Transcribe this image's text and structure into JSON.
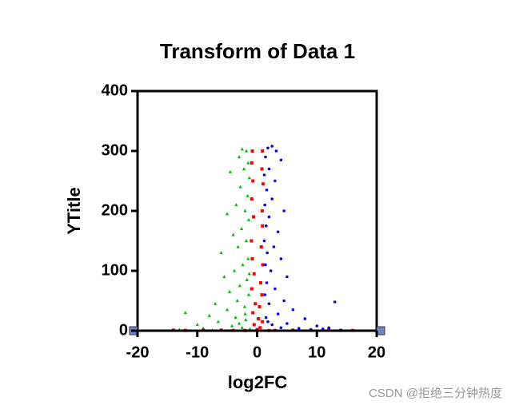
{
  "chart_data": {
    "type": "scatter",
    "title": "Transform of Data 1",
    "x_label": "log2FC",
    "y_label": "YTitle",
    "xlim": [
      -20,
      20
    ],
    "xticks": [
      -20,
      -10,
      0,
      10,
      20
    ],
    "ylim": [
      0,
      400
    ],
    "yticks": [
      0,
      100,
      200,
      300,
      400
    ],
    "series": [
      {
        "color": "#00c000",
        "marker": "triangle",
        "x": [
          -2.5,
          -1.8,
          -3,
          -1.5,
          -2.2,
          -4.5,
          -1.3,
          -2.8,
          -1.6,
          -3.5,
          -2,
          -5,
          -1.4,
          -2.6,
          -4,
          -1.8,
          -3.2,
          -6,
          -1.5,
          -2.4,
          -3.8,
          -5.5,
          -1.7,
          -2.9,
          -4.6,
          -1.4,
          -3.3,
          -7,
          -2.1,
          -5,
          -12,
          -8,
          -3.6,
          -1.9,
          -6.5,
          -10,
          -4.2,
          -2.5,
          -9,
          -13,
          -7.5,
          -1.2,
          -3,
          -2,
          -1.3
        ],
        "values": [
          303,
          300,
          290,
          280,
          270,
          265,
          255,
          240,
          225,
          210,
          200,
          195,
          185,
          170,
          160,
          150,
          140,
          130,
          120,
          110,
          100,
          90,
          85,
          75,
          65,
          60,
          50,
          45,
          40,
          35,
          30,
          25,
          22,
          18,
          15,
          10,
          8,
          5,
          4,
          2,
          1,
          3,
          12,
          28,
          95
        ]
      },
      {
        "color": "#ff0000",
        "marker": "square",
        "x": [
          -0.8,
          0.9,
          -0.9,
          0.8,
          -0.7,
          1.0,
          -0.9,
          0.85,
          -0.6,
          0.9,
          -0.95,
          0.7,
          -0.8,
          0.95,
          -0.5,
          0.6,
          -0.9,
          0.8,
          -0.3,
          0.4,
          -0.7,
          0.2,
          0.9,
          -0.5,
          0.5,
          0,
          -14,
          -12,
          -9,
          -6,
          -4,
          3,
          6,
          9,
          12,
          14,
          16,
          -2,
          2
        ],
        "values": [
          300,
          300,
          280,
          270,
          250,
          245,
          220,
          200,
          190,
          175,
          150,
          140,
          120,
          110,
          95,
          80,
          70,
          60,
          45,
          40,
          30,
          20,
          15,
          10,
          5,
          2,
          1,
          0.5,
          1,
          1,
          0.5,
          0.5,
          1,
          0.5,
          1,
          0.5,
          0.5,
          0.3,
          0.3
        ]
      },
      {
        "color": "#0000ff",
        "marker": "circle",
        "x": [
          2.5,
          1.8,
          3.2,
          1.4,
          4,
          2,
          1.2,
          3,
          1.6,
          2.5,
          1.3,
          4.5,
          2,
          1.5,
          3.5,
          1.2,
          2.8,
          1.7,
          4,
          1.4,
          2.3,
          5,
          1.6,
          3,
          1.3,
          4.5,
          2,
          6,
          3.5,
          13,
          8,
          1.5,
          10,
          5,
          12,
          7,
          2.5,
          11,
          14,
          9,
          1.8,
          4
        ],
        "values": [
          308,
          305,
          300,
          290,
          285,
          270,
          260,
          250,
          235,
          220,
          210,
          200,
          190,
          175,
          165,
          150,
          140,
          130,
          120,
          110,
          100,
          90,
          80,
          70,
          60,
          50,
          45,
          35,
          28,
          48,
          20,
          22,
          8,
          12,
          5,
          4,
          10,
          3,
          1,
          2,
          15,
          5
        ]
      }
    ]
  },
  "watermark": "CSDN @拒绝三分钟热度"
}
